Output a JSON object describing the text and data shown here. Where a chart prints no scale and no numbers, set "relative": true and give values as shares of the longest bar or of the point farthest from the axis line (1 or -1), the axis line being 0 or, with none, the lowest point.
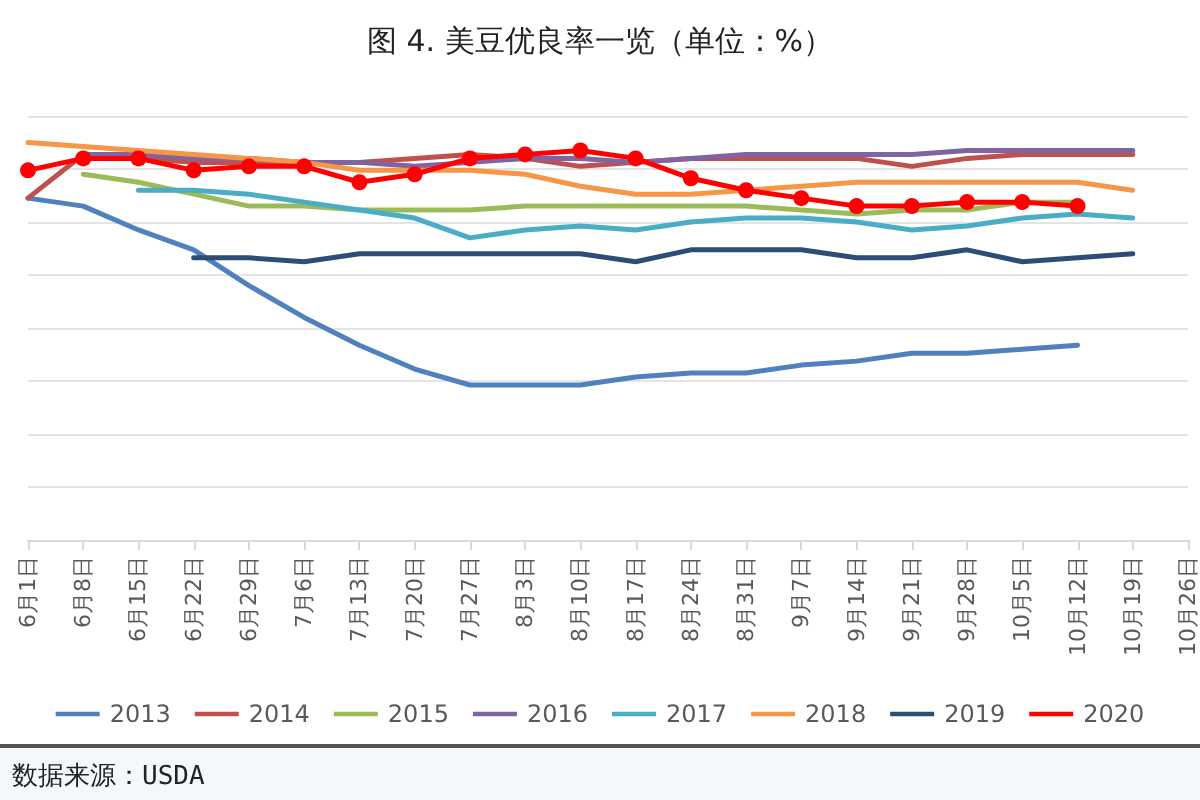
{
  "chart_data": {
    "type": "line",
    "title": "图 4. 美豆优良率一览（单位：%）",
    "relative": true,
    "grid": "y",
    "legend": "bottom",
    "marker": "none",
    "line_style": "solid",
    "annotations": [
      "数据来源：USDA"
    ],
    "categories": [
      "6月1日",
      "6月8日",
      "6月15日",
      "6月22日",
      "6月29日",
      "7月6日",
      "7月13日",
      "7月20日",
      "7月27日",
      "8月3日",
      "8月10日",
      "8月17日",
      "8月24日",
      "8月31日",
      "9月7日",
      "9月14日",
      "9月21日",
      "9月28日",
      "10月5日",
      "10月12日",
      "10月19日",
      "10月26日"
    ],
    "series": [
      {
        "name": "2013",
        "color": "#4f81bd",
        "values": [
          0.86,
          0.84,
          0.78,
          0.73,
          0.64,
          0.56,
          0.49,
          0.43,
          0.39,
          0.39,
          0.39,
          0.41,
          0.42,
          0.42,
          0.44,
          0.45,
          0.47,
          0.47,
          0.48,
          0.49,
          null,
          null
        ]
      },
      {
        "name": "2014",
        "color": "#c0504d",
        "values": [
          0.86,
          0.97,
          0.96,
          0.95,
          0.95,
          0.95,
          0.95,
          0.96,
          0.97,
          0.96,
          0.94,
          0.95,
          0.96,
          0.96,
          0.96,
          0.96,
          0.94,
          0.96,
          0.97,
          0.97,
          0.97,
          null
        ]
      },
      {
        "name": "2015",
        "color": "#9bbb59",
        "values": [
          null,
          0.92,
          0.9,
          0.87,
          0.84,
          0.84,
          0.83,
          0.83,
          0.83,
          0.84,
          0.84,
          0.84,
          0.84,
          0.84,
          0.83,
          0.82,
          0.83,
          0.83,
          0.85,
          0.85,
          null,
          null
        ]
      },
      {
        "name": "2016",
        "color": "#8064a2",
        "values": [
          null,
          0.97,
          0.97,
          0.96,
          0.96,
          0.95,
          0.95,
          0.94,
          0.95,
          0.96,
          0.96,
          0.95,
          0.96,
          0.97,
          0.97,
          0.97,
          0.97,
          0.98,
          0.98,
          0.98,
          0.98,
          null
        ]
      },
      {
        "name": "2017",
        "color": "#4bacc6",
        "values": [
          null,
          null,
          0.88,
          0.88,
          0.87,
          0.85,
          0.83,
          0.81,
          0.76,
          0.78,
          0.79,
          0.78,
          0.8,
          0.81,
          0.81,
          0.8,
          0.78,
          0.79,
          0.81,
          0.82,
          0.81,
          null
        ]
      },
      {
        "name": "2018",
        "color": "#f79646",
        "values": [
          1.0,
          0.99,
          0.98,
          0.97,
          0.96,
          0.95,
          0.93,
          0.93,
          0.93,
          0.92,
          0.89,
          0.87,
          0.87,
          0.88,
          0.89,
          0.9,
          0.9,
          0.9,
          0.9,
          0.9,
          0.88,
          null
        ]
      },
      {
        "name": "2019",
        "color": "#2c4d75",
        "values": [
          null,
          null,
          null,
          0.71,
          0.71,
          0.7,
          0.72,
          0.72,
          0.72,
          0.72,
          0.72,
          0.7,
          0.73,
          0.73,
          0.73,
          0.71,
          0.71,
          0.73,
          0.7,
          0.71,
          0.72,
          null
        ]
      },
      {
        "name": "2020",
        "color": "#ff0000",
        "marker": "circle",
        "values": [
          0.93,
          0.96,
          0.96,
          0.93,
          0.94,
          0.94,
          0.9,
          0.92,
          0.96,
          0.97,
          0.98,
          0.96,
          0.91,
          0.88,
          0.86,
          0.84,
          0.84,
          0.85,
          0.85,
          0.84,
          null,
          null
        ]
      }
    ]
  }
}
